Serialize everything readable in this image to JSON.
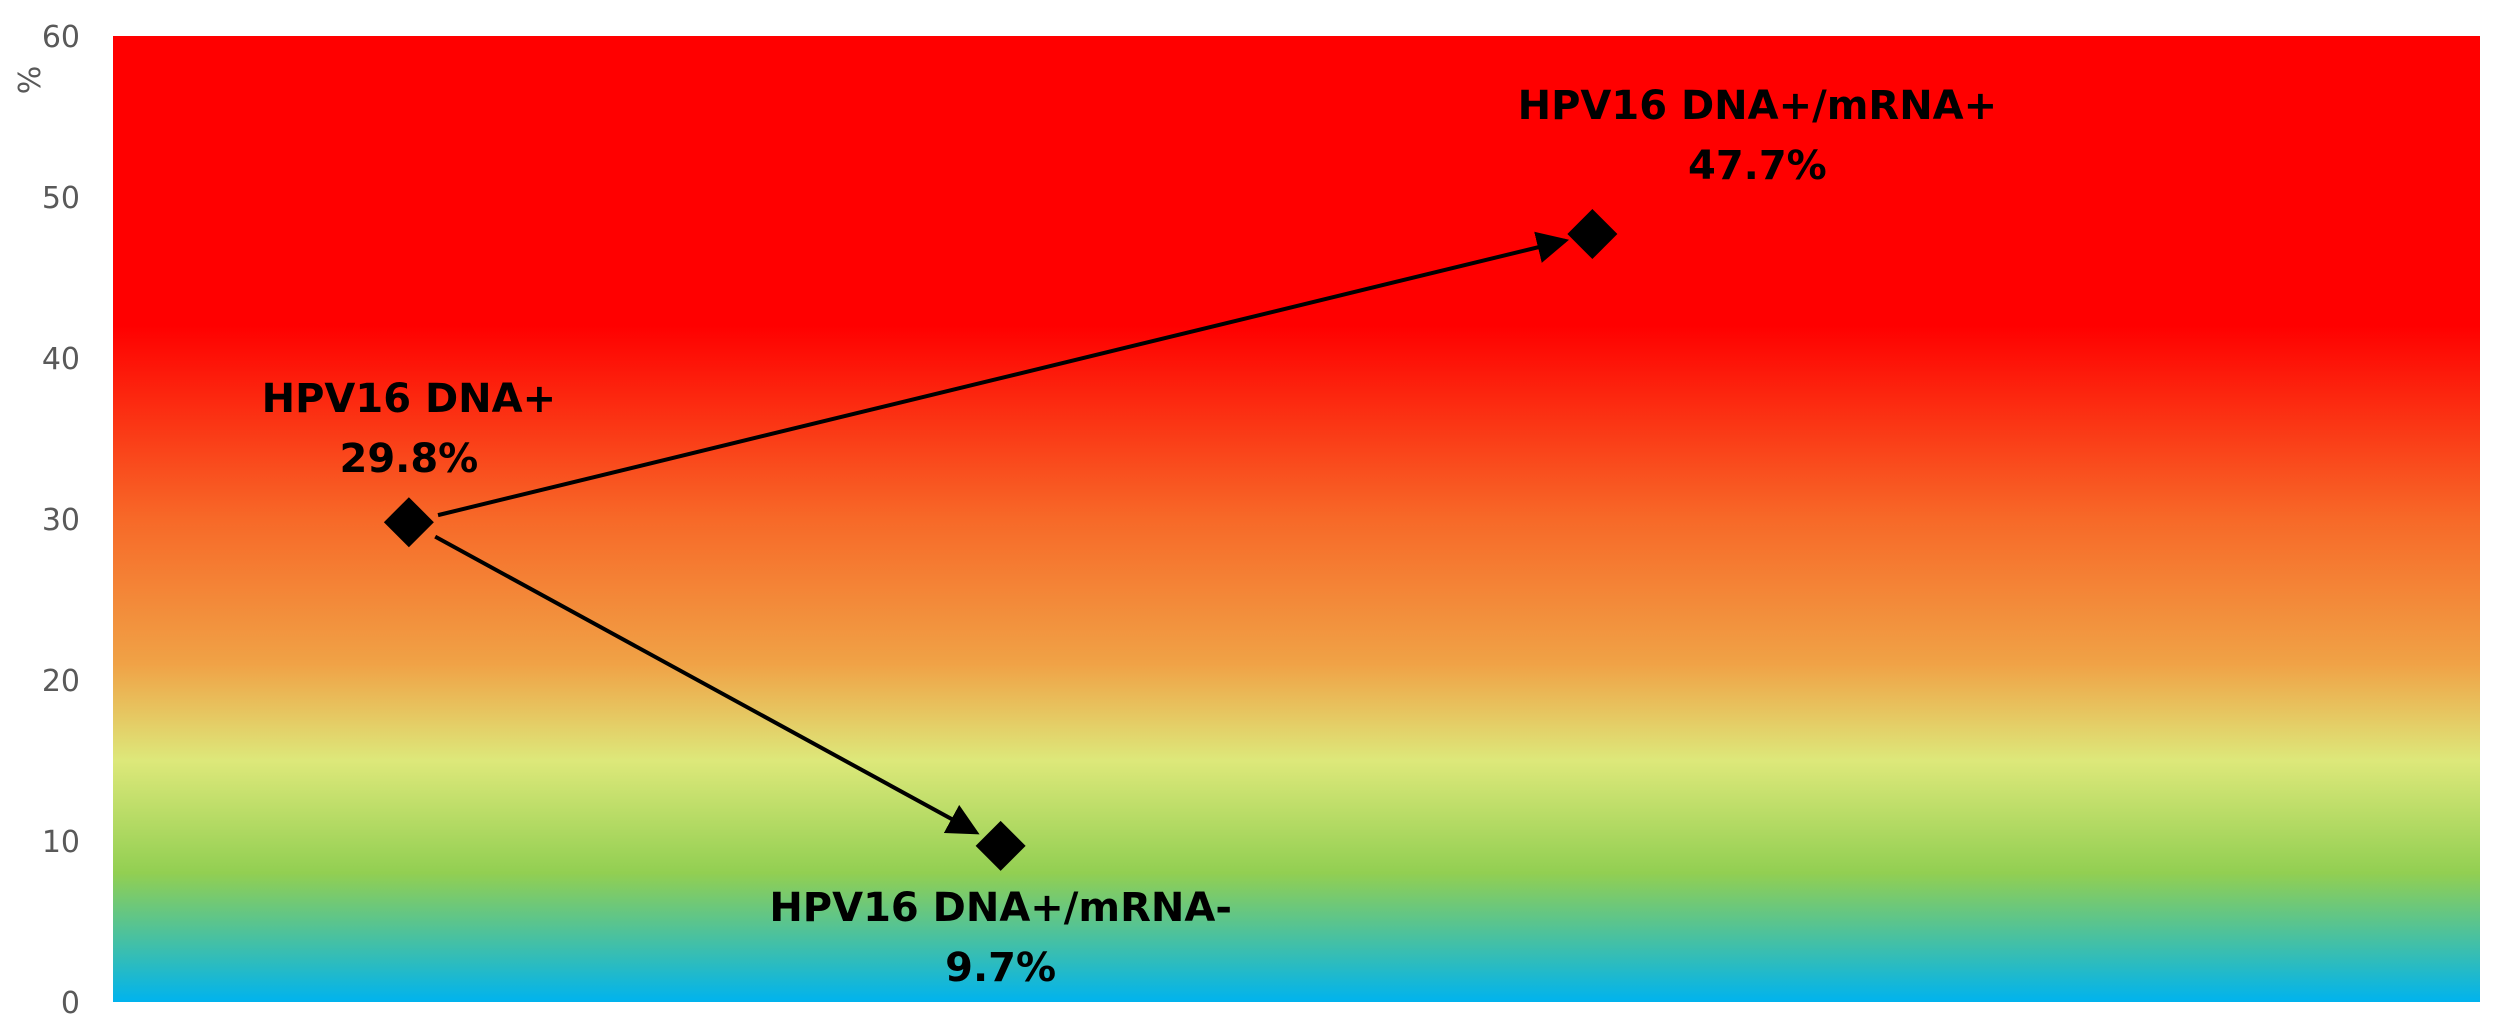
{
  "chart_data": {
    "type": "scatter",
    "title": "",
    "xlabel": "",
    "ylabel": "%",
    "ylim": [
      0,
      60
    ],
    "y_ticks": [
      "0",
      "10",
      "20",
      "30",
      "40",
      "50",
      "60"
    ],
    "grid": false,
    "legend": "none",
    "x_range": [
      0,
      8
    ],
    "points": [
      {
        "x": 1.0,
        "y": 29.8,
        "label": "HPV16 DNA+",
        "value_label": "29.8%"
      },
      {
        "x": 5.0,
        "y": 47.7,
        "label": "HPV16 DNA+/mRNA+",
        "value_label": "47.7%"
      },
      {
        "x": 3.0,
        "y": 9.7,
        "label": "HPV16 DNA+/mRNA-",
        "value_label": "9.7%"
      }
    ],
    "arrows": [
      {
        "from": "HPV16 DNA+",
        "to": "HPV16 DNA+/mRNA+"
      },
      {
        "from": "HPV16 DNA+",
        "to": "HPV16 DNA+/mRNA-"
      }
    ],
    "marker": "diamond",
    "marker_color": "#000000",
    "background_gradient": [
      {
        "value": 60,
        "color": "#ff0000"
      },
      {
        "value": 42,
        "color": "#ff0000"
      },
      {
        "value": 30,
        "color": "#f76928"
      },
      {
        "value": 21,
        "color": "#f0a246"
      },
      {
        "value": 15,
        "color": "#dde87a"
      },
      {
        "value": 8,
        "color": "#92cf52"
      },
      {
        "value": 0,
        "color": "#00b3ee"
      }
    ]
  }
}
